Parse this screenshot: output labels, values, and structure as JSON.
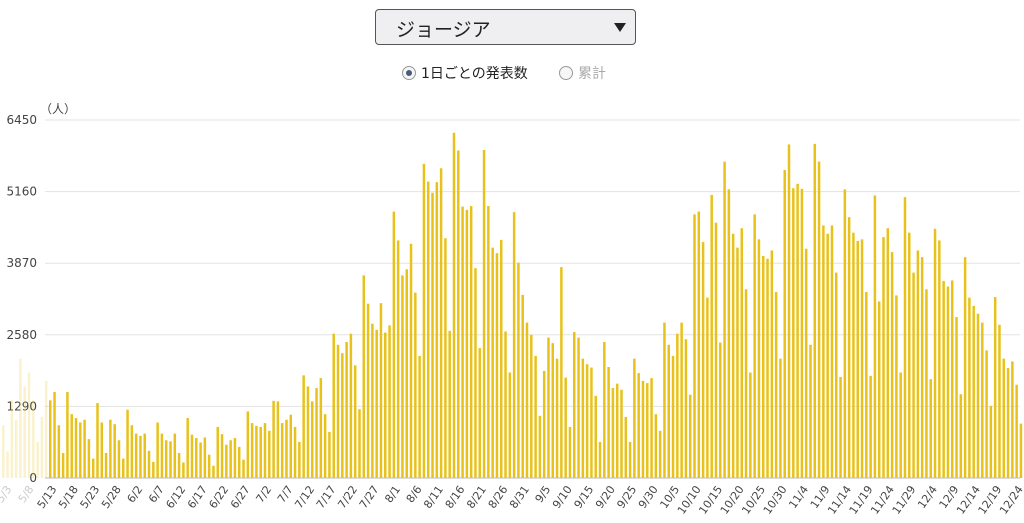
{
  "selector": {
    "value": "ジョージア",
    "arrow_icon": "triangle-down-icon"
  },
  "toggle": {
    "options": [
      {
        "label": "1日ごとの発表数",
        "selected": true
      },
      {
        "label": "累計",
        "selected": false
      }
    ]
  },
  "chart_data": {
    "type": "bar",
    "ylabel": "（人）",
    "yticks": [
      0,
      1290,
      2580,
      3870,
      5160,
      6450
    ],
    "ylim": [
      0,
      6450
    ],
    "grid": true,
    "bar_color": "#e8c21a",
    "x_tick_labels": [
      "5/13",
      "5/18",
      "5/23",
      "5/28",
      "6/2",
      "6/7",
      "6/12",
      "6/17",
      "6/22",
      "6/27",
      "7/2",
      "7/7",
      "7/12",
      "7/17",
      "7/22",
      "7/27",
      "8/1",
      "8/6",
      "8/11",
      "8/16",
      "8/21",
      "8/26",
      "8/31",
      "9/5",
      "9/10",
      "9/15",
      "9/20",
      "9/25",
      "9/30",
      "10/5",
      "10/10",
      "10/15",
      "10/20",
      "10/25",
      "10/30",
      "11/4",
      "11/9",
      "11/14",
      "11/19",
      "11/24",
      "11/29",
      "12/4",
      "12/9",
      "12/14",
      "12/19",
      "12/24"
    ],
    "x_tick_labels_faded": [
      "5/3",
      "5/8"
    ],
    "faded_values": [
      950,
      480,
      1400,
      1050,
      2150,
      1650,
      1900,
      1400,
      650,
      1100,
      1750
    ],
    "values": [
      1400,
      1550,
      950,
      450,
      1550,
      1150,
      1080,
      1000,
      1050,
      700,
      350,
      1350,
      1000,
      450,
      1050,
      970,
      680,
      350,
      1230,
      950,
      800,
      760,
      800,
      490,
      290,
      1000,
      800,
      680,
      660,
      800,
      450,
      280,
      1080,
      780,
      720,
      640,
      730,
      420,
      220,
      920,
      790,
      600,
      680,
      720,
      560,
      330,
      1200,
      990,
      940,
      920,
      990,
      850,
      1390,
      1380,
      990,
      1050,
      1140,
      920,
      650,
      1850,
      1650,
      1380,
      1620,
      1800,
      1150,
      830,
      2600,
      2400,
      2250,
      2450,
      2600,
      2030,
      1240,
      3650,
      3140,
      2780,
      2670,
      3150,
      2620,
      2750,
      4800,
      4280,
      3650,
      3760,
      4220,
      3340,
      2200,
      5660,
      5340,
      5140,
      5330,
      5580,
      4320,
      2650,
      6220,
      5900,
      4890,
      4830,
      4900,
      3780,
      2340,
      5910,
      4900,
      4150,
      4050,
      4290,
      2640,
      1900,
      4790,
      3880,
      3300,
      2800,
      2580,
      2200,
      1120,
      1930,
      2530,
      2430,
      2150,
      3800,
      1810,
      920,
      2630,
      2530,
      2150,
      2050,
      1990,
      1480,
      650,
      2450,
      2000,
      1620,
      1700,
      1590,
      1100,
      650,
      2150,
      1890,
      1750,
      1710,
      1800,
      1150,
      850,
      2800,
      2400,
      2200,
      2600,
      2800,
      2500,
      1500,
      4750,
      4800,
      4250,
      3250,
      5100,
      4600,
      2440,
      5700,
      5200,
      4400,
      4150,
      4500,
      3400,
      1900,
      4750,
      4300,
      4000,
      3950,
      4100,
      3350,
      2150,
      5550,
      6010,
      5220,
      5300,
      5210,
      4130,
      2400,
      6020,
      5700,
      4550,
      4400,
      4550,
      3700,
      1820,
      5200,
      4700,
      4420,
      4270,
      4300,
      3350,
      1840,
      5090,
      3180,
      4340,
      4500,
      4070,
      3290,
      1900,
      5060,
      4420,
      3700,
      4100,
      3980,
      3400,
      1780,
      4490,
      4280,
      3550,
      3450,
      3560,
      2900,
      1510,
      3980,
      3250,
      3100,
      2960,
      2800,
      2300,
      1300,
      3260,
      2760,
      2150,
      1980,
      2100,
      1680,
      980
    ]
  }
}
